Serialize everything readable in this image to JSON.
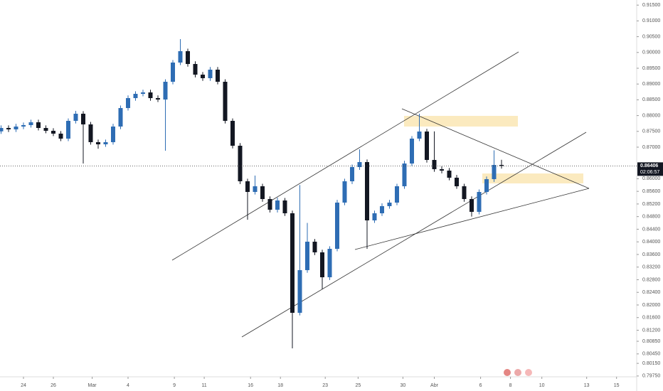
{
  "chart_data": {
    "type": "candlestick",
    "x": [
      -1.5,
      -1,
      -0.5,
      0,
      0.5,
      1,
      1.5,
      2,
      2.5,
      3,
      3.5,
      4,
      4.5,
      5,
      5.5,
      6,
      6.5,
      7,
      7.5,
      8,
      8.5,
      9,
      9.5,
      10,
      10.5,
      11,
      11.5,
      12,
      12.5,
      13,
      13.5,
      14,
      14.5,
      15,
      15.5,
      16,
      16.5,
      17,
      17.5,
      18,
      18.5,
      19,
      19.5,
      20,
      20.5,
      21,
      21.5,
      22,
      22.5,
      23,
      23.5,
      24,
      24.5,
      25,
      25.5,
      26,
      26.5,
      27,
      27.5,
      28,
      28.5,
      29,
      29.5,
      30,
      30.5,
      31,
      31.5,
      32
    ],
    "open": [
      0.875,
      0.87608,
      0.87563,
      0.87653,
      0.87698,
      0.87788,
      0.87608,
      0.87518,
      0.87428,
      0.8727,
      0.87833,
      0.88059,
      0.87721,
      0.87158,
      0.8709,
      0.87158,
      0.87653,
      0.88239,
      0.88554,
      0.88689,
      0.88734,
      0.88554,
      0.88509,
      0.89072,
      0.8968,
      0.90041,
      0.89635,
      0.89297,
      0.89185,
      0.89455,
      0.89072,
      0.87833,
      0.87045,
      0.85919,
      0.85581,
      0.85761,
      0.85356,
      0.85018,
      0.85311,
      0.84905,
      0.81752,
      0.83104,
      0.84005,
      0.83667,
      0.82878,
      0.83779,
      0.85243,
      0.85919,
      0.86369,
      0.86527,
      0.8468,
      0.84905,
      0.85131,
      0.85243,
      0.85761,
      0.86482,
      0.8727,
      0.87495,
      0.86595,
      0.86302,
      0.86257,
      0.86032,
      0.85761,
      0.85356,
      0.8495,
      0.85581,
      0.85986,
      0.86437
    ],
    "high": [
      0.8769,
      0.8769,
      0.8774,
      0.8778,
      0.8787,
      0.8787,
      0.8769,
      0.876,
      0.8751,
      0.8791,
      0.8815,
      0.8814,
      0.878,
      0.8724,
      0.8724,
      0.8774,
      0.8832,
      0.8864,
      0.8877,
      0.8882,
      0.8882,
      0.8864,
      0.8915,
      0.8976,
      0.90423,
      0.9012,
      0.8972,
      0.8938,
      0.8954,
      0.8954,
      0.8915,
      0.8791,
      0.8713,
      0.86,
      0.861,
      0.8584,
      0.8544,
      0.854,
      0.8539,
      0.8499,
      0.858,
      0.846,
      0.8409,
      0.8375,
      0.8386,
      0.8533,
      0.86,
      0.8645,
      0.8693,
      0.8661,
      0.8499,
      0.8522,
      0.8533,
      0.8584,
      0.8657,
      0.8735,
      0.88059,
      0.8758,
      0.875,
      0.8639,
      0.8634,
      0.8612,
      0.8584,
      0.8544,
      0.8566,
      0.8607,
      0.869,
      0.866
    ],
    "low": [
      0.8742,
      0.8748,
      0.8748,
      0.8757,
      0.8762,
      0.8753,
      0.8744,
      0.8735,
      0.8719,
      0.8719,
      0.8775,
      0.86482,
      0.8708,
      0.8695,
      0.8701,
      0.8708,
      0.8757,
      0.8816,
      0.8847,
      0.8861,
      0.8847,
      0.8843,
      0.86887,
      0.8899,
      0.896,
      0.8955,
      0.8921,
      0.891,
      0.891,
      0.8899,
      0.8775,
      0.8696,
      0.8583,
      0.847,
      0.855,
      0.8527,
      0.8493,
      0.8493,
      0.8482,
      0.80626,
      0.8167,
      0.8302,
      0.8358,
      0.825,
      0.8279,
      0.837,
      0.8516,
      0.8583,
      0.8628,
      0.83779,
      0.846,
      0.8482,
      0.8505,
      0.8516,
      0.8568,
      0.864,
      0.8719,
      0.8651,
      0.8622,
      0.8617,
      0.8595,
      0.8568,
      0.8527,
      0.848,
      0.8487,
      0.855,
      0.859,
      0.8632
    ],
    "close": [
      0.87608,
      0.87563,
      0.87653,
      0.87698,
      0.87788,
      0.87608,
      0.87518,
      0.87428,
      0.8727,
      0.87833,
      0.88059,
      0.87721,
      0.87158,
      0.8709,
      0.87158,
      0.87653,
      0.88239,
      0.88554,
      0.88689,
      0.88734,
      0.88554,
      0.88509,
      0.89072,
      0.8968,
      0.90041,
      0.89635,
      0.89297,
      0.89185,
      0.89455,
      0.89072,
      0.87833,
      0.87045,
      0.85919,
      0.85581,
      0.85761,
      0.85356,
      0.85018,
      0.85311,
      0.84905,
      0.81752,
      0.83104,
      0.84005,
      0.83667,
      0.82878,
      0.83779,
      0.85243,
      0.85919,
      0.86369,
      0.86527,
      0.8468,
      0.84905,
      0.85131,
      0.85243,
      0.85761,
      0.86482,
      0.8727,
      0.87495,
      0.86595,
      0.86302,
      0.86257,
      0.86032,
      0.85761,
      0.85356,
      0.8495,
      0.85581,
      0.85986,
      0.86437,
      0.86406
    ],
    "up_color": "#2e6db4",
    "down_color": "#131722",
    "xlim": [
      -1.571,
      41.048
    ],
    "xticks": [
      {
        "value": 0,
        "label": "24"
      },
      {
        "value": 2,
        "label": "26"
      },
      {
        "value": 4.6,
        "label": "Mar"
      },
      {
        "value": 7,
        "label": "4"
      },
      {
        "value": 10.1,
        "label": "9"
      },
      {
        "value": 12.1,
        "label": "11"
      },
      {
        "value": 15.2,
        "label": "16"
      },
      {
        "value": 17.2,
        "label": "18"
      },
      {
        "value": 20.2,
        "label": "23"
      },
      {
        "value": 22.4,
        "label": "25"
      },
      {
        "value": 25.4,
        "label": "30"
      },
      {
        "value": 27.5,
        "label": "Abr"
      },
      {
        "value": 30.6,
        "label": "6"
      },
      {
        "value": 32.6,
        "label": "8"
      },
      {
        "value": 34.7,
        "label": "10"
      },
      {
        "value": 37.7,
        "label": "13"
      },
      {
        "value": 39.7,
        "label": "15"
      }
    ],
    "ylim": [
      0.79725,
      0.91662
    ],
    "yticks": [
      {
        "value": 0.915,
        "label": "0.91500"
      },
      {
        "value": 0.91,
        "label": "0.91000"
      },
      {
        "value": 0.905,
        "label": "0.90500"
      },
      {
        "value": 0.9,
        "label": "0.90000"
      },
      {
        "value": 0.895,
        "label": "0.89500"
      },
      {
        "value": 0.89,
        "label": "0.89000"
      },
      {
        "value": 0.885,
        "label": "0.88500"
      },
      {
        "value": 0.88,
        "label": "0.88000"
      },
      {
        "value": 0.875,
        "label": "0.87500"
      },
      {
        "value": 0.87,
        "label": "0.87000"
      },
      {
        "value": 0.86,
        "label": "0.86000"
      },
      {
        "value": 0.856,
        "label": "0.85600"
      },
      {
        "value": 0.852,
        "label": "0.85200"
      },
      {
        "value": 0.848,
        "label": "0.84800"
      },
      {
        "value": 0.844,
        "label": "0.84400"
      },
      {
        "value": 0.84,
        "label": "0.84000"
      },
      {
        "value": 0.836,
        "label": "0.83600"
      },
      {
        "value": 0.832,
        "label": "0.83200"
      },
      {
        "value": 0.828,
        "label": "0.82800"
      },
      {
        "value": 0.824,
        "label": "0.82400"
      },
      {
        "value": 0.82,
        "label": "0.82000"
      },
      {
        "value": 0.816,
        "label": "0.81600"
      },
      {
        "value": 0.812,
        "label": "0.81200"
      },
      {
        "value": 0.8085,
        "label": "0.80850"
      },
      {
        "value": 0.8045,
        "label": "0.80450"
      },
      {
        "value": 0.8015,
        "label": "0.80150"
      },
      {
        "value": 0.7975,
        "label": "0.79750"
      }
    ],
    "last_price": 0.86406,
    "countdown": "02:06:57"
  }
}
